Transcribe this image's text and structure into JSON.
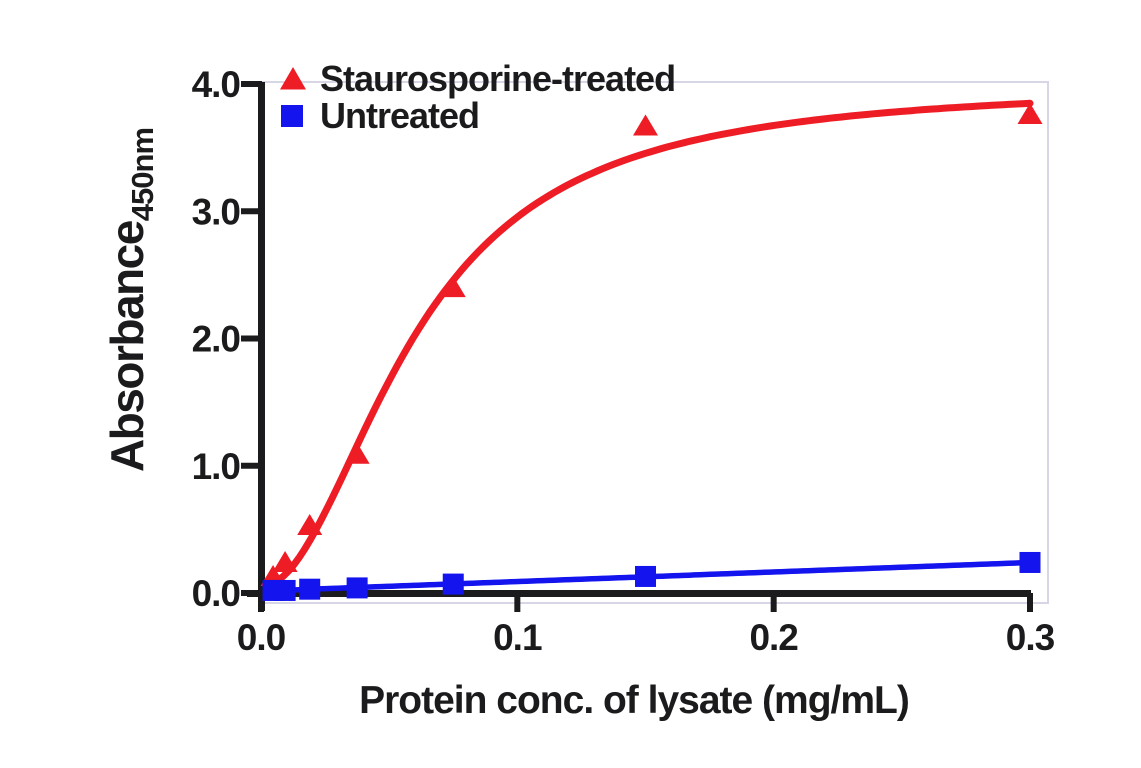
{
  "figure": {
    "background_color": "#ffffff",
    "text_color": "#1b1b1d",
    "frame_color": "#d6d6e7",
    "axis_color": "#1b1b1d"
  },
  "chart_data": {
    "type": "scatter",
    "title": "",
    "xlabel": "Protein conc. of lysate (mg/mL)",
    "ylabel": "Absorbance",
    "ylabel_subscript": "450nm",
    "xlim": [
      0,
      0.3
    ],
    "ylim": [
      0,
      4.0
    ],
    "grid": false,
    "legend_position": "top-left-inside",
    "x_ticks": [
      "0.0",
      "0.1",
      "0.2",
      "0.3"
    ],
    "x_tick_values": [
      0,
      0.1,
      0.2,
      0.3
    ],
    "y_ticks": [
      "0.0",
      "1.0",
      "2.0",
      "3.0",
      "4.0"
    ],
    "y_tick_values": [
      0,
      1,
      2,
      3,
      4
    ],
    "x": [
      0.0047,
      0.0094,
      0.019,
      0.0375,
      0.075,
      0.15,
      0.3
    ],
    "series": [
      {
        "name": "Staurosporine-treated",
        "marker": "triangle",
        "color": "#ee1c25",
        "values": [
          0.13,
          0.24,
          0.53,
          1.09,
          2.4,
          3.67,
          3.76
        ],
        "fit": {
          "type": "4pl",
          "min": 0.05,
          "max": 4.0,
          "ec50": 0.06,
          "hill": 2.0
        },
        "curve_stroke_width": 7
      },
      {
        "name": "Untreated",
        "marker": "square",
        "color": "#1414ee",
        "values": [
          0.02,
          0.02,
          0.03,
          0.04,
          0.07,
          0.13,
          0.24
        ],
        "fit": {
          "type": "linear",
          "intercept": 0.015,
          "slope": 0.75
        },
        "curve_stroke_width": 5.5
      }
    ]
  }
}
